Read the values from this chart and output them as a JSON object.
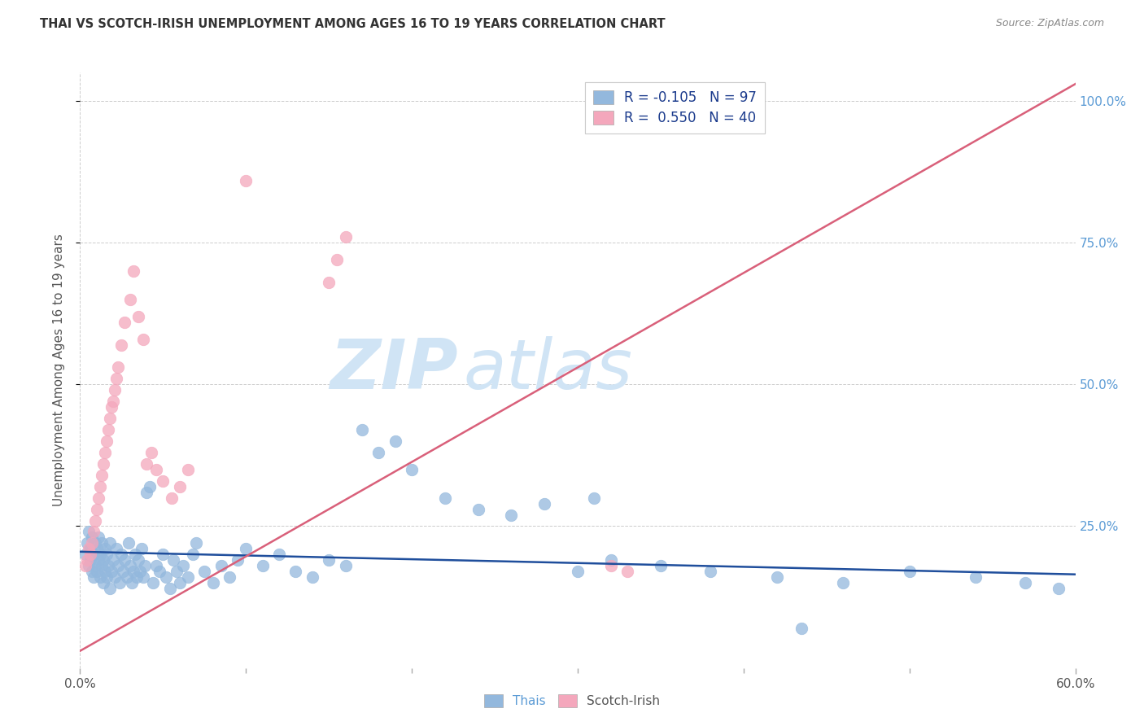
{
  "title": "THAI VS SCOTCH-IRISH UNEMPLOYMENT AMONG AGES 16 TO 19 YEARS CORRELATION CHART",
  "source": "Source: ZipAtlas.com",
  "ylabel": "Unemployment Among Ages 16 to 19 years",
  "xlim": [
    0.0,
    0.6
  ],
  "ylim": [
    0.0,
    1.05
  ],
  "xtick_values": [
    0.0,
    0.6
  ],
  "xtick_labels": [
    "0.0%",
    "60.0%"
  ],
  "ytick_values": [
    0.25,
    0.5,
    0.75,
    1.0
  ],
  "ytick_labels": [
    "25.0%",
    "50.0%",
    "75.0%",
    "100.0%"
  ],
  "blue_color": "#93b8dd",
  "pink_color": "#f4a7bc",
  "blue_line_color": "#1f4e9c",
  "pink_line_color": "#d9607a",
  "blue_R": -0.105,
  "blue_N": 97,
  "pink_R": 0.55,
  "pink_N": 40,
  "watermark_zip": "ZIP",
  "watermark_atlas": "atlas",
  "watermark_color": "#d0e4f5",
  "background_color": "#ffffff",
  "grid_color": "#cccccc",
  "blue_line_x": [
    0.0,
    0.6
  ],
  "blue_line_y": [
    0.205,
    0.165
  ],
  "pink_line_x": [
    0.0,
    0.6
  ],
  "pink_line_y": [
    0.03,
    1.03
  ],
  "blue_x": [
    0.003,
    0.004,
    0.005,
    0.005,
    0.006,
    0.006,
    0.007,
    0.007,
    0.008,
    0.008,
    0.009,
    0.009,
    0.01,
    0.01,
    0.011,
    0.011,
    0.012,
    0.012,
    0.013,
    0.013,
    0.014,
    0.014,
    0.015,
    0.015,
    0.016,
    0.016,
    0.017,
    0.018,
    0.018,
    0.019,
    0.02,
    0.021,
    0.022,
    0.023,
    0.024,
    0.025,
    0.026,
    0.027,
    0.028,
    0.029,
    0.03,
    0.031,
    0.032,
    0.033,
    0.034,
    0.035,
    0.036,
    0.037,
    0.038,
    0.039,
    0.04,
    0.042,
    0.044,
    0.046,
    0.048,
    0.05,
    0.052,
    0.054,
    0.056,
    0.058,
    0.06,
    0.062,
    0.065,
    0.068,
    0.07,
    0.075,
    0.08,
    0.085,
    0.09,
    0.095,
    0.1,
    0.11,
    0.12,
    0.13,
    0.14,
    0.15,
    0.16,
    0.17,
    0.18,
    0.19,
    0.2,
    0.22,
    0.24,
    0.26,
    0.28,
    0.3,
    0.32,
    0.35,
    0.38,
    0.42,
    0.46,
    0.5,
    0.54,
    0.57,
    0.59,
    0.435,
    0.31
  ],
  "blue_y": [
    0.2,
    0.22,
    0.18,
    0.24,
    0.19,
    0.21,
    0.17,
    0.23,
    0.16,
    0.2,
    0.22,
    0.18,
    0.21,
    0.17,
    0.19,
    0.23,
    0.16,
    0.2,
    0.18,
    0.22,
    0.15,
    0.19,
    0.17,
    0.21,
    0.16,
    0.2,
    0.18,
    0.14,
    0.22,
    0.17,
    0.19,
    0.16,
    0.21,
    0.18,
    0.15,
    0.2,
    0.17,
    0.19,
    0.16,
    0.22,
    0.18,
    0.15,
    0.17,
    0.2,
    0.16,
    0.19,
    0.17,
    0.21,
    0.16,
    0.18,
    0.31,
    0.32,
    0.15,
    0.18,
    0.17,
    0.2,
    0.16,
    0.14,
    0.19,
    0.17,
    0.15,
    0.18,
    0.16,
    0.2,
    0.22,
    0.17,
    0.15,
    0.18,
    0.16,
    0.19,
    0.21,
    0.18,
    0.2,
    0.17,
    0.16,
    0.19,
    0.18,
    0.42,
    0.38,
    0.4,
    0.35,
    0.3,
    0.28,
    0.27,
    0.29,
    0.17,
    0.19,
    0.18,
    0.17,
    0.16,
    0.15,
    0.17,
    0.16,
    0.15,
    0.14,
    0.07,
    0.3
  ],
  "pink_x": [
    0.003,
    0.004,
    0.005,
    0.006,
    0.007,
    0.008,
    0.009,
    0.01,
    0.011,
    0.012,
    0.013,
    0.014,
    0.015,
    0.016,
    0.017,
    0.018,
    0.019,
    0.02,
    0.021,
    0.022,
    0.023,
    0.025,
    0.027,
    0.03,
    0.032,
    0.035,
    0.038,
    0.04,
    0.043,
    0.046,
    0.05,
    0.055,
    0.06,
    0.065,
    0.1,
    0.15,
    0.155,
    0.16,
    0.32,
    0.33
  ],
  "pink_y": [
    0.18,
    0.19,
    0.21,
    0.2,
    0.22,
    0.24,
    0.26,
    0.28,
    0.3,
    0.32,
    0.34,
    0.36,
    0.38,
    0.4,
    0.42,
    0.44,
    0.46,
    0.47,
    0.49,
    0.51,
    0.53,
    0.57,
    0.61,
    0.65,
    0.7,
    0.62,
    0.58,
    0.36,
    0.38,
    0.35,
    0.33,
    0.3,
    0.32,
    0.35,
    0.86,
    0.68,
    0.72,
    0.76,
    0.18,
    0.17
  ]
}
